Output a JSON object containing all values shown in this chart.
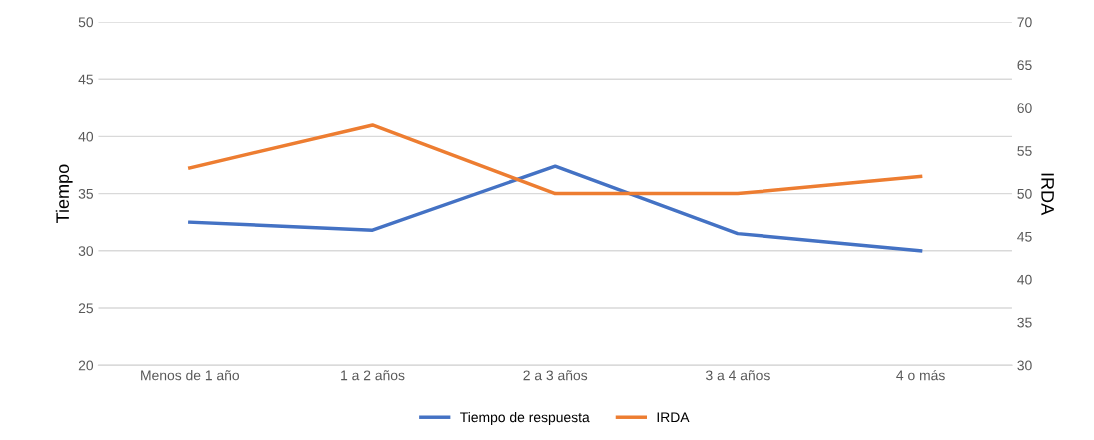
{
  "chart_data": {
    "type": "line",
    "ylabel": "Tiempo",
    "y2label": "IRDA",
    "categories": [
      "Menos de 1 año",
      "1 a 2 años",
      "2 a 3 años",
      "3 a 4 años",
      "4 o más"
    ],
    "series": [
      {
        "name": "Tiempo de respuesta",
        "color": "#4472c4",
        "values": [
          32.5,
          31.8,
          37.4,
          31.5,
          30
        ]
      },
      {
        "name": "IRDA",
        "color": "#ed7d31",
        "values": [
          53,
          58,
          50,
          50,
          52
        ],
        "axis": "y2"
      }
    ],
    "ylim": [
      20,
      50
    ],
    "yticks": [
      20,
      25,
      30,
      35,
      40,
      45,
      50
    ],
    "y2lim": [
      30,
      70
    ],
    "y2ticks": [
      30,
      35,
      40,
      45,
      50,
      55,
      60,
      65,
      70
    ],
    "grid": "y",
    "legend": "bottom",
    "marker": "none",
    "line_style": "solid"
  }
}
